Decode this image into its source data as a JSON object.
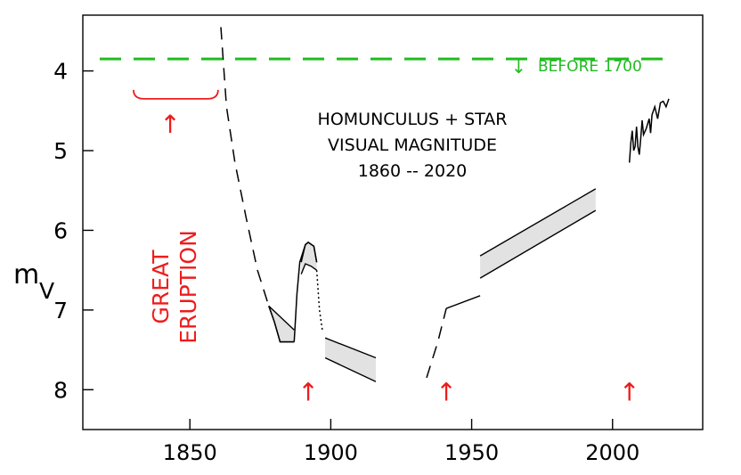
{
  "chart_data": {
    "type": "line",
    "title_lines": [
      "HOMUNCULUS + STAR",
      "VISUAL  MAGNITUDE",
      "1860 -- 2020"
    ],
    "ylabel_main": "m",
    "ylabel_sub": "V",
    "xlim": [
      1812,
      2032
    ],
    "ylim_inverted": [
      3.3,
      8.5
    ],
    "x_ticks": [
      1850,
      1900,
      1950,
      2000
    ],
    "y_ticks": [
      4,
      5,
      6,
      7,
      8
    ],
    "x_tick_labels": [
      "1850",
      "1900",
      "1950",
      "2000"
    ],
    "y_tick_labels": [
      "4",
      "5",
      "6",
      "7",
      "8"
    ],
    "reference_line": {
      "label": "BEFORE 1700",
      "arrow": "↓",
      "y": 3.85,
      "x_start": 1818,
      "x_end": 2022,
      "color": "#22bb22"
    },
    "great_eruption": {
      "label_lines": [
        "GREAT",
        "ERUPTION"
      ],
      "x_start": 1830,
      "x_end": 1860,
      "y": 4.35,
      "arrow_x": 1843,
      "color": "#ee1c1c"
    },
    "event_arrows": [
      {
        "x": 1892,
        "y": 8.0,
        "glyph": "↑"
      },
      {
        "x": 1941,
        "y": 8.0,
        "glyph": "↑"
      },
      {
        "x": 2006,
        "y": 8.0,
        "glyph": "↑"
      }
    ],
    "series": [
      {
        "style": "dashed",
        "points": [
          [
            1861,
            3.45
          ],
          [
            1863,
            4.45
          ],
          [
            1866,
            5.15
          ],
          [
            1870,
            5.85
          ],
          [
            1874,
            6.5
          ],
          [
            1878,
            6.95
          ]
        ]
      },
      {
        "style": "solid",
        "points": [
          [
            1878,
            6.95
          ],
          [
            1880,
            7.15
          ],
          [
            1882,
            7.4
          ],
          [
            1887,
            7.4
          ]
        ]
      },
      {
        "style": "band",
        "upper": [
          [
            1878,
            6.95
          ],
          [
            1887,
            7.25
          ]
        ],
        "lower": [
          [
            1878,
            6.95
          ],
          [
            1880,
            7.15
          ],
          [
            1882,
            7.4
          ],
          [
            1887,
            7.4
          ]
        ]
      },
      {
        "style": "solid",
        "points": [
          [
            1887,
            7.4
          ],
          [
            1888,
            6.8
          ],
          [
            1889,
            6.4
          ],
          [
            1891,
            6.18
          ],
          [
            1892,
            6.15
          ],
          [
            1894,
            6.2
          ],
          [
            1895,
            6.4
          ]
        ]
      },
      {
        "style": "band",
        "upper": [
          [
            1889.5,
            6.4
          ],
          [
            1891,
            6.18
          ],
          [
            1892,
            6.15
          ],
          [
            1894,
            6.2
          ],
          [
            1895,
            6.4
          ]
        ],
        "lower": [
          [
            1889.5,
            6.55
          ],
          [
            1891,
            6.42
          ],
          [
            1893,
            6.45
          ],
          [
            1895,
            6.5
          ]
        ]
      },
      {
        "style": "dotted",
        "points": [
          [
            1895,
            6.5
          ],
          [
            1896,
            7.0
          ],
          [
            1897,
            7.25
          ]
        ]
      },
      {
        "style": "band",
        "upper": [
          [
            1898,
            7.35
          ],
          [
            1916,
            7.6
          ]
        ],
        "lower": [
          [
            1898,
            7.6
          ],
          [
            1916,
            7.9
          ]
        ]
      },
      {
        "style": "dashed",
        "points": [
          [
            1934,
            7.85
          ],
          [
            1938,
            7.4
          ],
          [
            1941,
            6.98
          ]
        ]
      },
      {
        "style": "solid",
        "points": [
          [
            1941,
            6.98
          ],
          [
            1953,
            6.82
          ]
        ]
      },
      {
        "style": "band",
        "upper": [
          [
            1953,
            6.32
          ],
          [
            1994,
            5.48
          ]
        ],
        "lower": [
          [
            1953,
            6.6
          ],
          [
            1994,
            5.75
          ]
        ]
      },
      {
        "style": "solid",
        "points": [
          [
            2006,
            5.15
          ],
          [
            2006.5,
            4.9
          ],
          [
            2007,
            4.75
          ],
          [
            2007.5,
            5.0
          ],
          [
            2008,
            4.95
          ],
          [
            2008.5,
            4.7
          ],
          [
            2009,
            4.95
          ],
          [
            2009.5,
            5.05
          ],
          [
            2010,
            4.85
          ],
          [
            2010.5,
            4.62
          ],
          [
            2011,
            4.8
          ],
          [
            2012,
            4.72
          ],
          [
            2013,
            4.6
          ],
          [
            2013.5,
            4.78
          ],
          [
            2014,
            4.55
          ],
          [
            2015,
            4.45
          ],
          [
            2016,
            4.6
          ],
          [
            2017,
            4.4
          ],
          [
            2018,
            4.38
          ],
          [
            2019,
            4.45
          ],
          [
            2020,
            4.35
          ]
        ]
      }
    ],
    "grid": false,
    "legend": "none"
  }
}
